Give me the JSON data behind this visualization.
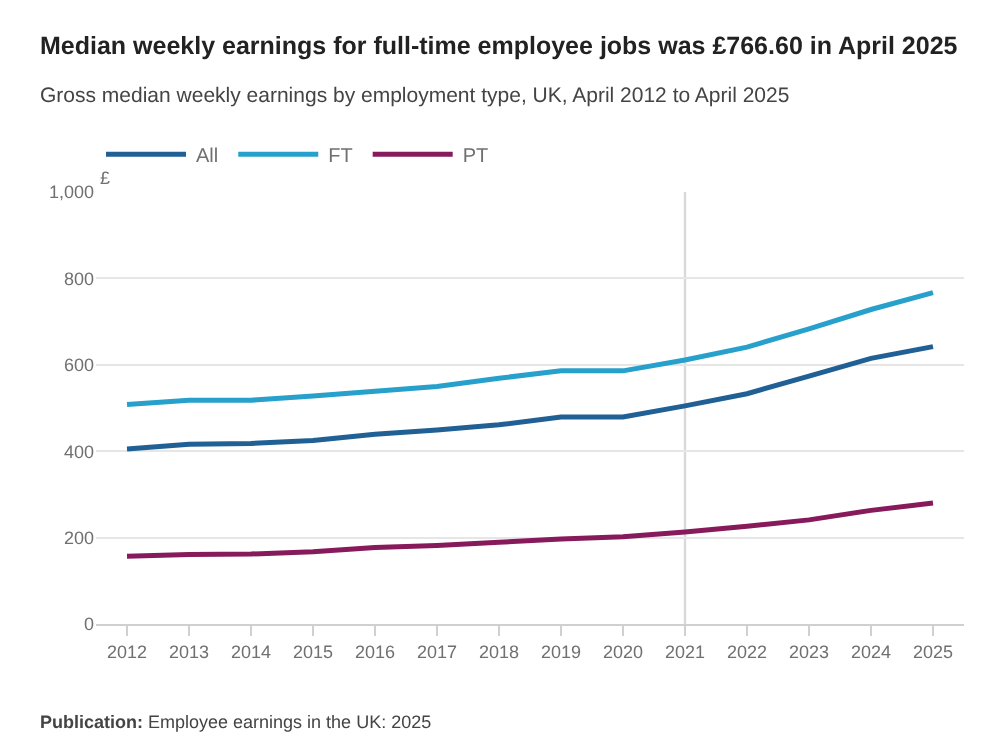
{
  "chart_data": {
    "type": "line",
    "title": "Median weekly earnings for full-time employee jobs was £766.60 in April 2025",
    "subtitle": "Gross median weekly earnings by employment type, UK, April 2012 to April 2025",
    "ylabel": "£",
    "x": [
      2012,
      2013,
      2014,
      2015,
      2016,
      2017,
      2018,
      2019,
      2020,
      2021,
      2022,
      2023,
      2024,
      2025
    ],
    "series": [
      {
        "name": "All",
        "color": "#206095",
        "values": [
          405,
          416,
          418,
          425,
          439,
          449,
          461,
          479,
          479,
          505,
          533,
          574,
          615,
          642
        ]
      },
      {
        "name": "FT",
        "color": "#27a0cc",
        "values": [
          508,
          518,
          518,
          528,
          539,
          550,
          569,
          586,
          586,
          611,
          641,
          683,
          728,
          767
        ]
      },
      {
        "name": "PT",
        "color": "#871a5b",
        "values": [
          157,
          161,
          162,
          167,
          177,
          182,
          189,
          197,
          202,
          213,
          226,
          241,
          263,
          280
        ]
      }
    ],
    "xlim": [
      2011.5,
      2025.5
    ],
    "xticks": [
      2012,
      2013,
      2014,
      2015,
      2016,
      2017,
      2018,
      2019,
      2020,
      2021,
      2022,
      2023,
      2024,
      2025
    ],
    "ylim": [
      0,
      1000
    ],
    "yticks": [
      0,
      200,
      400,
      600,
      800,
      {
        "value": 1000,
        "label": "1,000"
      }
    ],
    "ref_lines": [
      {
        "axis": "x",
        "value": 2021,
        "color": "#d9d9d9"
      }
    ],
    "annotations": [
      "Publication: Employee earnings in the UK: 2025"
    ],
    "grid": "y",
    "legend": "top left",
    "marker": "none",
    "line_style": "solid"
  }
}
